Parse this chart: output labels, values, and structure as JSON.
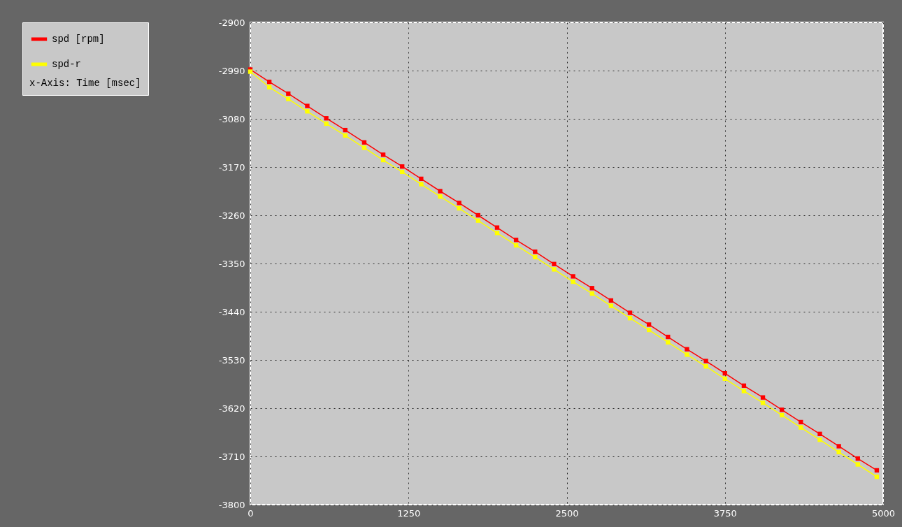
{
  "chart_data": {
    "type": "line",
    "annotations": [
      "x-Axis: Time [msec]"
    ],
    "x": [
      0,
      150,
      300,
      450,
      600,
      750,
      900,
      1050,
      1200,
      1350,
      1500,
      1650,
      1800,
      1950,
      2100,
      2250,
      2400,
      2550,
      2700,
      2850,
      3000,
      3150,
      3300,
      3450,
      3600,
      3750,
      3900,
      4050,
      4200,
      4350,
      4500,
      4650,
      4800,
      4950
    ],
    "series": [
      {
        "name": "spd [rpm]",
        "color": "#ff0000",
        "values": [
          -2988,
          -3011,
          -3033,
          -3056,
          -3079,
          -3101,
          -3124,
          -3147,
          -3169,
          -3192,
          -3215,
          -3237,
          -3260,
          -3283,
          -3306,
          -3328,
          -3351,
          -3374,
          -3396,
          -3419,
          -3442,
          -3464,
          -3487,
          -3510,
          -3532,
          -3555,
          -3578,
          -3600,
          -3623,
          -3646,
          -3668,
          -3691,
          -3714,
          -3736
        ]
      },
      {
        "name": "spd-r",
        "color": "#ffff00",
        "values": [
          -2992,
          -3021,
          -3043,
          -3066,
          -3089,
          -3111,
          -3134,
          -3157,
          -3179,
          -3202,
          -3225,
          -3247,
          -3270,
          -3293,
          -3316,
          -3338,
          -3361,
          -3384,
          -3406,
          -3429,
          -3452,
          -3474,
          -3497,
          -3520,
          -3542,
          -3565,
          -3588,
          -3610,
          -3633,
          -3656,
          -3679,
          -3702,
          -3725,
          -3748
        ]
      }
    ],
    "xlim": [
      0,
      5000
    ],
    "xticks": [
      0,
      1250,
      2500,
      3750,
      5000
    ],
    "ylim": [
      -3800,
      -2900
    ],
    "yticks": [
      -2900,
      -2990,
      -3080,
      -3170,
      -3260,
      -3350,
      -3440,
      -3530,
      -3620,
      -3710,
      -3800
    ],
    "grid": true,
    "legend": "top left",
    "marker": "square",
    "line_style": "solid"
  }
}
